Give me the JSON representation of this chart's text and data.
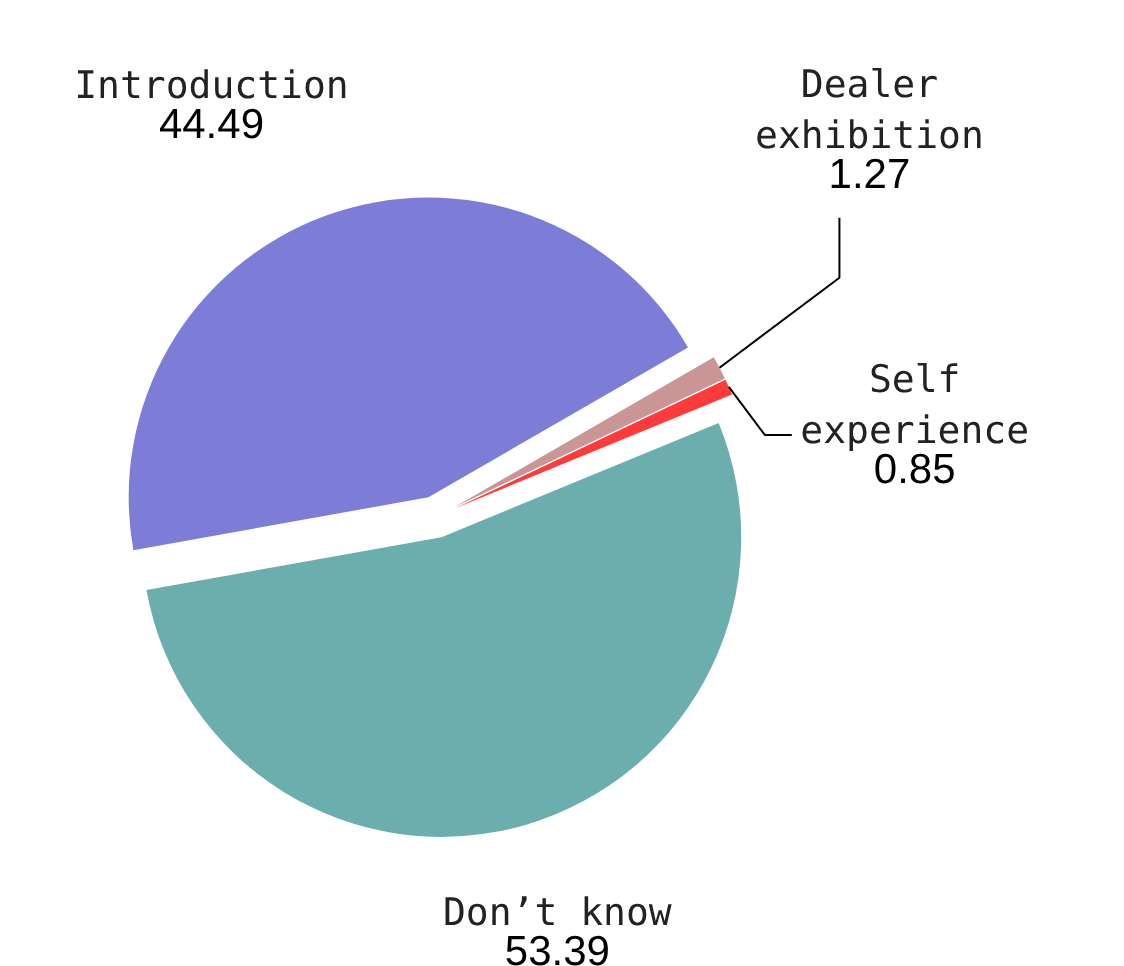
{
  "chart_data": {
    "type": "pie",
    "categories": [
      "Introduction",
      "Don’t know",
      "Self experience",
      "Dealer exhibition"
    ],
    "values": [
      44.49,
      53.39,
      0.85,
      1.27
    ],
    "colors": [
      "#7d7dd8",
      "#6aaeae",
      "#ff3a3a",
      "#c99595"
    ],
    "data_labels": true
  }
}
